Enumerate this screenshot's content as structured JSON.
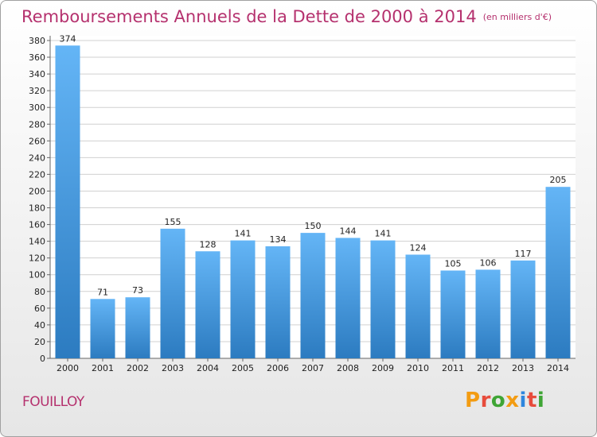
{
  "header": {
    "title": "Remboursements Annuels de la Dette de 2000 à 2014",
    "unit": "(en milliers d'€)"
  },
  "footer": {
    "place": "FOUILLOY",
    "logo": "Proxiti",
    "logo_colors": [
      "#f39c12",
      "#e74c3c",
      "#3fa535",
      "#f39c12",
      "#2e86de",
      "#e74c3c",
      "#3fa535"
    ]
  },
  "colors": {
    "title": "#b5316e",
    "bar_light": "#64b5f6",
    "bar_dark": "#2c7bc0"
  },
  "chart_data": {
    "type": "bar",
    "title": "Remboursements Annuels de la Dette de 2000 à 2014",
    "subtitle": "(en milliers d'€)",
    "xlabel": "",
    "ylabel": "",
    "categories": [
      "2000",
      "2001",
      "2002",
      "2003",
      "2004",
      "2005",
      "2006",
      "2007",
      "2008",
      "2009",
      "2010",
      "2011",
      "2012",
      "2013",
      "2014"
    ],
    "values": [
      374,
      71,
      73,
      155,
      128,
      141,
      134,
      150,
      144,
      141,
      124,
      105,
      106,
      117,
      205
    ],
    "ylim": [
      0,
      380
    ],
    "yticks": [
      0,
      20,
      40,
      60,
      80,
      100,
      120,
      140,
      160,
      180,
      200,
      220,
      240,
      260,
      280,
      300,
      320,
      340,
      360,
      380
    ],
    "grid": true,
    "data_labels": true
  }
}
